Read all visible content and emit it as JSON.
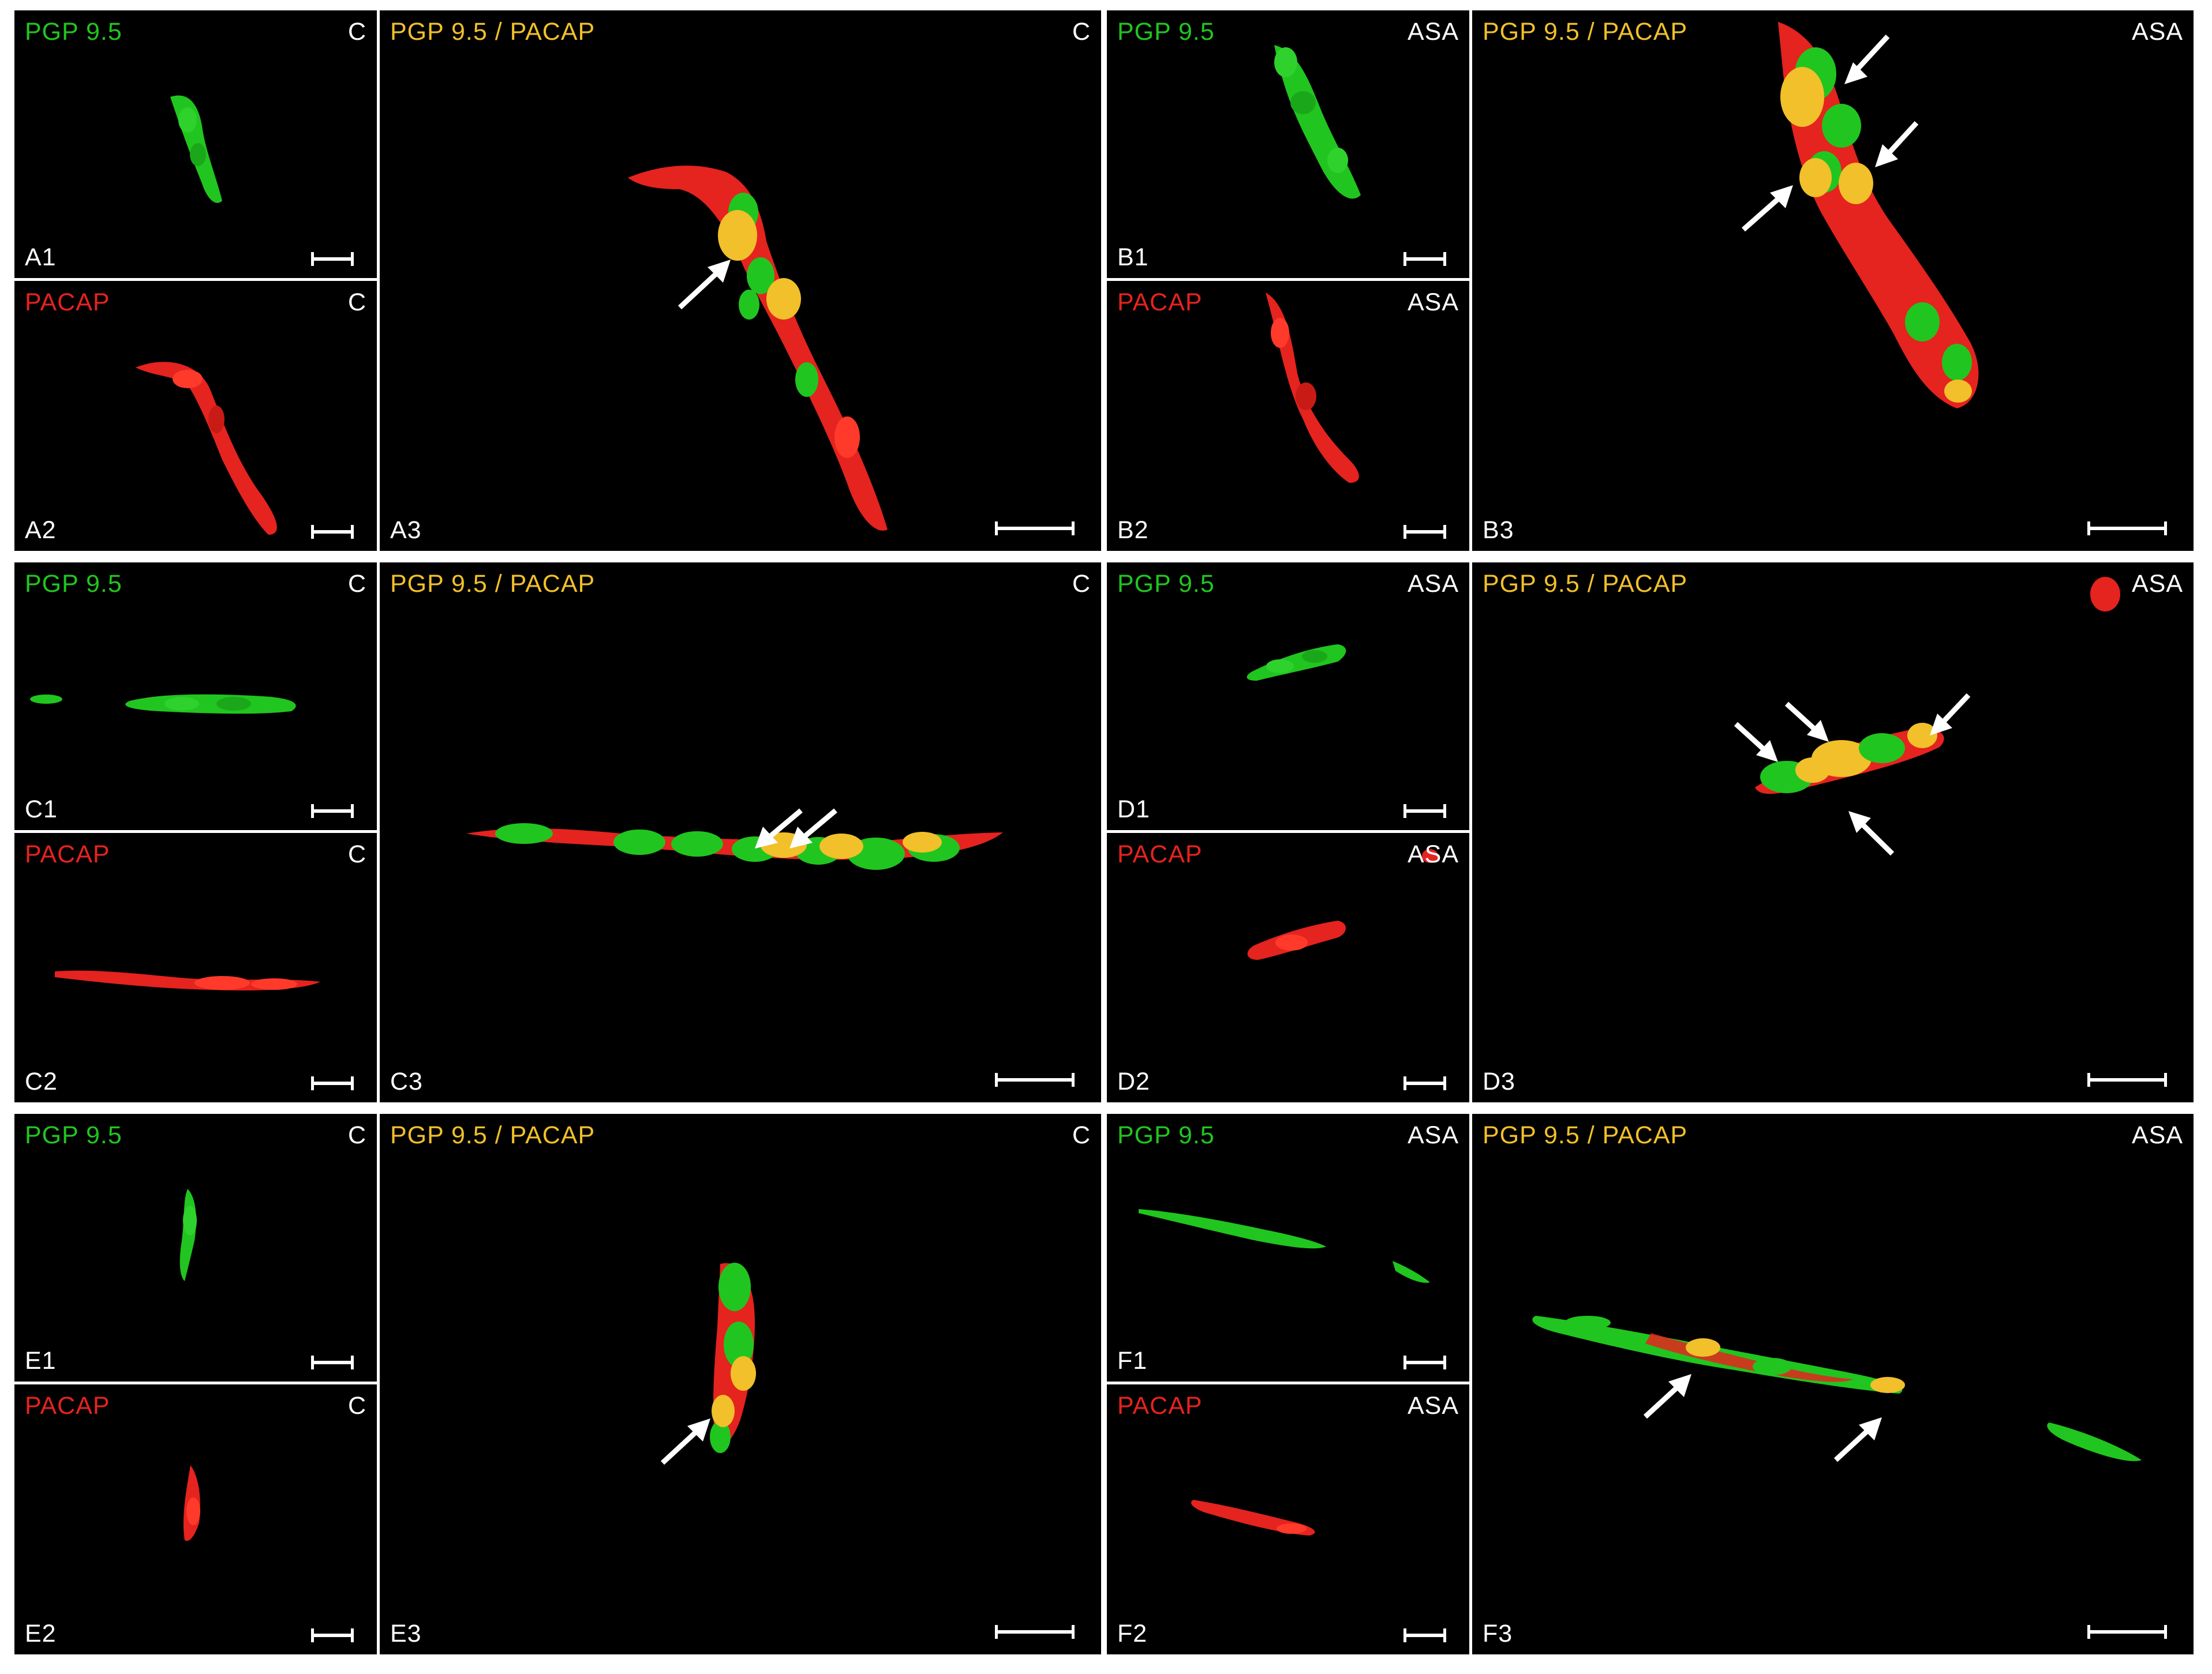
{
  "colors": {
    "green_channel": "#21c51f",
    "red_channel": "#e5231f",
    "merge_channel": "#f1c02a",
    "background": "#000000",
    "annotation": "#ffffff"
  },
  "labels": {
    "pgp": "PGP 9.5",
    "pacap": "PACAP",
    "merge": "PGP 9.5 / PACAP",
    "control": "C",
    "asa": "ASA"
  },
  "panel_ids": {
    "A1": "A1",
    "A2": "A2",
    "A3": "A3",
    "B1": "B1",
    "B2": "B2",
    "B3": "B3",
    "C1": "C1",
    "C2": "C2",
    "C3": "C3",
    "D1": "D1",
    "D2": "D2",
    "D3": "D3",
    "E1": "E1",
    "E2": "E2",
    "E3": "E3",
    "F1": "F1",
    "F2": "F2",
    "F3": "F3"
  }
}
